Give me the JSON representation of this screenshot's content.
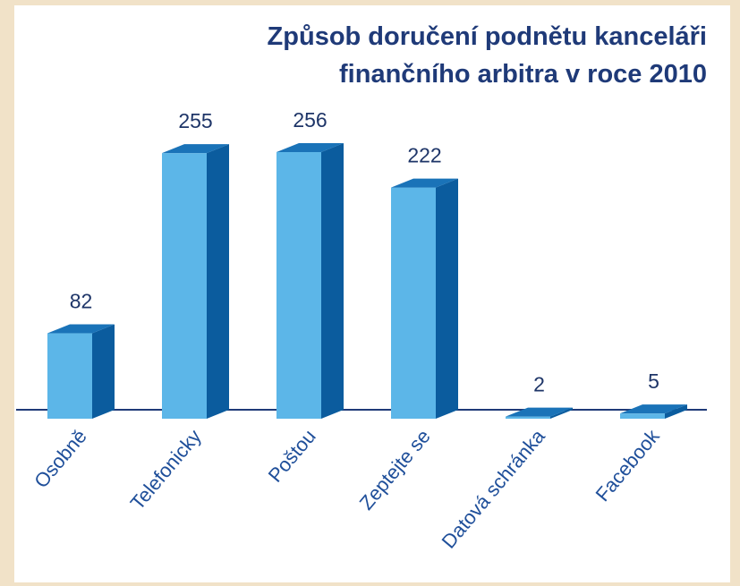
{
  "chart_data": {
    "type": "bar3d",
    "title": [
      "Způsob doručení podnětu kanceláři",
      "finančního arbitra v roce 2010"
    ],
    "categories": [
      "Osobně",
      "Telefonicky",
      "Poštou",
      "Zeptejte se",
      "Datová schránka",
      "Facebook"
    ],
    "values": [
      82,
      255,
      256,
      222,
      2,
      5
    ],
    "colors": {
      "front": "#5cb6e8",
      "side": "#0b5c9e",
      "top": "#1a73b8"
    }
  }
}
